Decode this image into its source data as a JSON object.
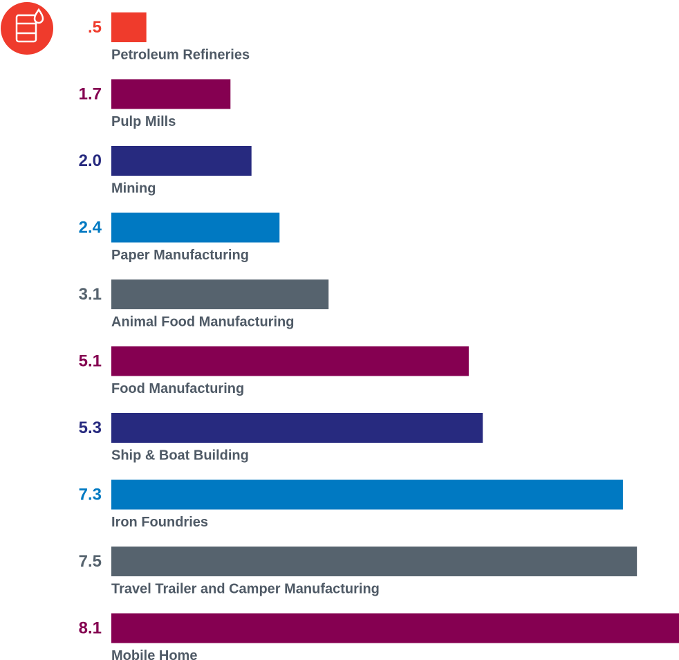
{
  "chart_data": {
    "type": "bar",
    "orientation": "horizontal",
    "categories": [
      "Petroleum Refineries",
      "Pulp Mills",
      "Mining",
      "Paper Manufacturing",
      "Animal Food Manufacturing",
      "Food Manufacturing",
      "Ship & Boat Building",
      "Iron Foundries",
      "Travel Trailer and Camper Manufacturing",
      "Mobile Home"
    ],
    "values": [
      0.5,
      1.7,
      2.0,
      2.4,
      3.1,
      5.1,
      5.3,
      7.3,
      7.5,
      8.1
    ],
    "value_labels": [
      ".5",
      "1.7",
      "2.0",
      "2.4",
      "3.1",
      "5.1",
      "5.3",
      "7.3",
      "7.5",
      "8.1"
    ],
    "colors": [
      "#ef3b2c",
      "#850051",
      "#272a7f",
      "#0079c2",
      "#56636e",
      "#850051",
      "#272a7f",
      "#0079c2",
      "#56636e",
      "#850051"
    ],
    "xlim": [
      0,
      8.1
    ]
  }
}
